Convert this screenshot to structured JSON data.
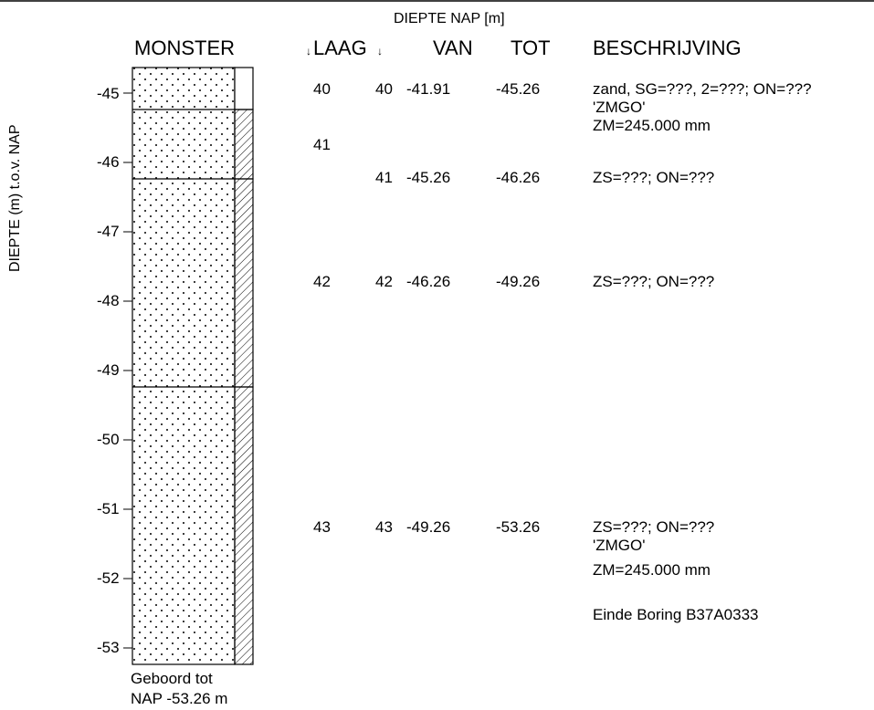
{
  "header": {
    "diepte_nap": "DIEPTE NAP [m]",
    "monster": "MONSTER",
    "laag": "LAAG",
    "van": "VAN",
    "tot": "TOT",
    "beschrijving": "BESCHRIJVING"
  },
  "axis": {
    "label": "DIEPTE (m) t.o.v. NAP",
    "ticks": [
      "-45",
      "-46",
      "-47",
      "-48",
      "-49",
      "-50",
      "-51",
      "-52",
      "-53"
    ]
  },
  "layers": [
    {
      "id": "40",
      "monster": "40",
      "van": "-41.91",
      "tot": "-45.26",
      "lines": [
        "zand, SG=???, 2=???; ON=???",
        "'ZMGO'",
        "ZM=245.000 mm"
      ]
    },
    {
      "id": "41",
      "monster": "41",
      "van": "-45.26",
      "tot": "-46.26",
      "lines": [
        "ZS=???; ON=???"
      ]
    },
    {
      "id": "42",
      "monster": "42",
      "van": "-46.26",
      "tot": "-49.26",
      "lines": [
        "ZS=???; ON=???"
      ]
    },
    {
      "id": "43",
      "monster": "43",
      "van": "-49.26",
      "tot": "-53.26",
      "lines": [
        "ZS=???; ON=???",
        "'ZMGO'",
        "ZM=245.000 mm",
        "",
        "Einde Boring B37A0333"
      ]
    }
  ],
  "label_41": "41",
  "footer": {
    "line1": "Geboord tot",
    "line2": "NAP -53.26 m"
  }
}
